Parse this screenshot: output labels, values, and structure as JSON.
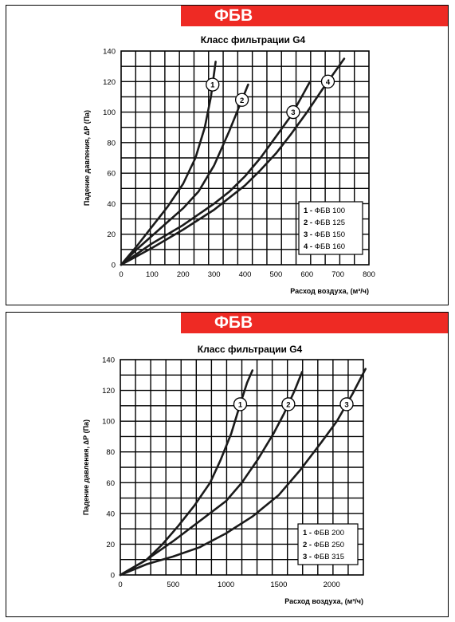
{
  "charts": [
    {
      "banner": "ФБВ",
      "chart_data": {
        "type": "line",
        "title": "Класс фильтрации G4",
        "xlabel": "Расход воздуха, (м³/ч)",
        "ylabel": "Падение давления, ∆Р (Па)",
        "xlim": [
          0,
          800
        ],
        "ylim": [
          0,
          140
        ],
        "x_ticks": [
          0,
          100,
          200,
          300,
          400,
          500,
          600,
          700,
          800
        ],
        "y_ticks": [
          0,
          20,
          40,
          60,
          80,
          100,
          120,
          140
        ],
        "grid": true,
        "legend_position": "lower-right",
        "series": [
          {
            "name": "ФБВ 100",
            "marker": "1",
            "points": [
              [
                0,
                0
              ],
              [
                50,
                12
              ],
              [
                100,
                25
              ],
              [
                150,
                38
              ],
              [
                200,
                53
              ],
              [
                240,
                70
              ],
              [
                270,
                90
              ],
              [
                290,
                110
              ],
              [
                305,
                133
              ]
            ]
          },
          {
            "name": "ФБВ 125",
            "marker": "2",
            "points": [
              [
                0,
                0
              ],
              [
                50,
                10
              ],
              [
                100,
                19
              ],
              [
                150,
                28
              ],
              [
                200,
                37
              ],
              [
                250,
                48
              ],
              [
                300,
                65
              ],
              [
                350,
                88
              ],
              [
                380,
                103
              ],
              [
                410,
                118
              ]
            ]
          },
          {
            "name": "ФБВ 150",
            "marker": "3",
            "points": [
              [
                0,
                0
              ],
              [
                100,
                14
              ],
              [
                200,
                26
              ],
              [
                300,
                40
              ],
              [
                350,
                48
              ],
              [
                400,
                58
              ],
              [
                450,
                70
              ],
              [
                500,
                84
              ],
              [
                550,
                98
              ],
              [
                610,
                120
              ]
            ]
          },
          {
            "name": "ФБВ 160",
            "marker": "4",
            "points": [
              [
                0,
                0
              ],
              [
                100,
                11
              ],
              [
                200,
                23
              ],
              [
                300,
                36
              ],
              [
                400,
                52
              ],
              [
                450,
                62
              ],
              [
                500,
                73
              ],
              [
                550,
                86
              ],
              [
                600,
                100
              ],
              [
                650,
                115
              ],
              [
                720,
                135
              ]
            ]
          }
        ]
      }
    },
    {
      "banner": "ФБВ",
      "chart_data": {
        "type": "line",
        "title": "Класс фильтрации G4",
        "xlabel": "Расход воздуха, (м³/ч)",
        "ylabel": "Падение давления, ∆Р (Па)",
        "xlim": [
          0,
          2300
        ],
        "ylim": [
          0,
          140
        ],
        "x_ticks": [
          0,
          500,
          1000,
          1500,
          2000
        ],
        "y_ticks": [
          0,
          20,
          40,
          60,
          80,
          100,
          120,
          140
        ],
        "grid": true,
        "legend_position": "lower-right",
        "series": [
          {
            "name": "ФБВ 200",
            "marker": "1",
            "points": [
              [
                0,
                0
              ],
              [
                250,
                10
              ],
              [
                400,
                20
              ],
              [
                550,
                32
              ],
              [
                700,
                45
              ],
              [
                850,
                60
              ],
              [
                950,
                75
              ],
              [
                1050,
                92
              ],
              [
                1130,
                110
              ],
              [
                1200,
                125
              ],
              [
                1250,
                133
              ]
            ]
          },
          {
            "name": "ФБВ 250",
            "marker": "2",
            "points": [
              [
                0,
                0
              ],
              [
                250,
                10
              ],
              [
                500,
                22
              ],
              [
                750,
                35
              ],
              [
                1000,
                48
              ],
              [
                1150,
                60
              ],
              [
                1300,
                75
              ],
              [
                1450,
                92
              ],
              [
                1550,
                105
              ],
              [
                1650,
                120
              ],
              [
                1720,
                132
              ]
            ]
          },
          {
            "name": "ФБВ 315",
            "marker": "3",
            "points": [
              [
                0,
                0
              ],
              [
                250,
                7
              ],
              [
                500,
                12
              ],
              [
                750,
                18
              ],
              [
                1000,
                27
              ],
              [
                1250,
                38
              ],
              [
                1500,
                52
              ],
              [
                1700,
                68
              ],
              [
                1900,
                86
              ],
              [
                2050,
                100
              ],
              [
                2200,
                118
              ],
              [
                2320,
                134
              ]
            ]
          }
        ]
      }
    }
  ]
}
